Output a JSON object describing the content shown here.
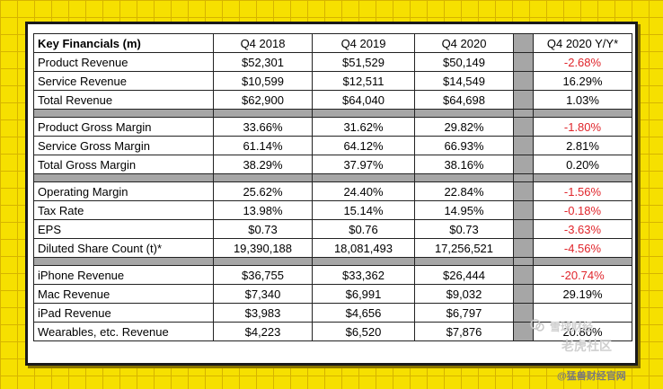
{
  "table": {
    "header": {
      "label": "Key Financials (m)",
      "c1": "Q4 2018",
      "c2": "Q4 2019",
      "c3": "Q4 2020",
      "yy": "Q4 2020 Y/Y*"
    },
    "rows": [
      {
        "label": "Product Revenue",
        "c1": "$52,301",
        "c2": "$51,529",
        "c3": "$50,149",
        "yy": "-2.68%",
        "neg": true
      },
      {
        "label": "Service Revenue",
        "c1": "$10,599",
        "c2": "$12,511",
        "c3": "$14,549",
        "yy": "16.29%",
        "neg": false
      },
      {
        "label": "Total Revenue",
        "c1": "$62,900",
        "c2": "$64,040",
        "c3": "$64,698",
        "yy": "1.03%",
        "neg": false
      },
      {
        "sep": true
      },
      {
        "label": "Product Gross Margin",
        "c1": "33.66%",
        "c2": "31.62%",
        "c3": "29.82%",
        "yy": "-1.80%",
        "neg": true
      },
      {
        "label": "Service Gross Margin",
        "c1": "61.14%",
        "c2": "64.12%",
        "c3": "66.93%",
        "yy": "2.81%",
        "neg": false
      },
      {
        "label": "Total Gross Margin",
        "c1": "38.29%",
        "c2": "37.97%",
        "c3": "38.16%",
        "yy": "0.20%",
        "neg": false
      },
      {
        "sep": true
      },
      {
        "label": "Operating Margin",
        "c1": "25.62%",
        "c2": "24.40%",
        "c3": "22.84%",
        "yy": "-1.56%",
        "neg": true
      },
      {
        "label": "Tax Rate",
        "c1": "13.98%",
        "c2": "15.14%",
        "c3": "14.95%",
        "yy": "-0.18%",
        "neg": true
      },
      {
        "label": "EPS",
        "c1": "$0.73",
        "c2": "$0.76",
        "c3": "$0.73",
        "yy": "-3.63%",
        "neg": true
      },
      {
        "label": "Diluted Share Count (t)*",
        "c1": "19,390,188",
        "c2": "18,081,493",
        "c3": "17,256,521",
        "yy": "-4.56%",
        "neg": true
      },
      {
        "sep": true
      },
      {
        "label": "iPhone Revenue",
        "c1": "$36,755",
        "c2": "$33,362",
        "c3": "$26,444",
        "yy": "-20.74%",
        "neg": true
      },
      {
        "label": "Mac Revenue",
        "c1": "$7,340",
        "c2": "$6,991",
        "c3": "$9,032",
        "yy": "29.19%",
        "neg": false
      },
      {
        "label": "iPad Revenue",
        "c1": "$3,983",
        "c2": "$4,656",
        "c3": "$6,797",
        "yy": "",
        "neg": false
      },
      {
        "label": "Wearables, etc. Revenue",
        "c1": "$4,223",
        "c2": "$6,520",
        "c3": "$7,876",
        "yy": "20.80%",
        "neg": false
      }
    ]
  },
  "watermarks": {
    "w1": "雪球财经",
    "w2": "老虎社区",
    "w3": "@猛兽财经官网"
  },
  "colors": {
    "negative": "#e0252b",
    "gap": "#a6a6a6",
    "background": "#f6e000"
  }
}
